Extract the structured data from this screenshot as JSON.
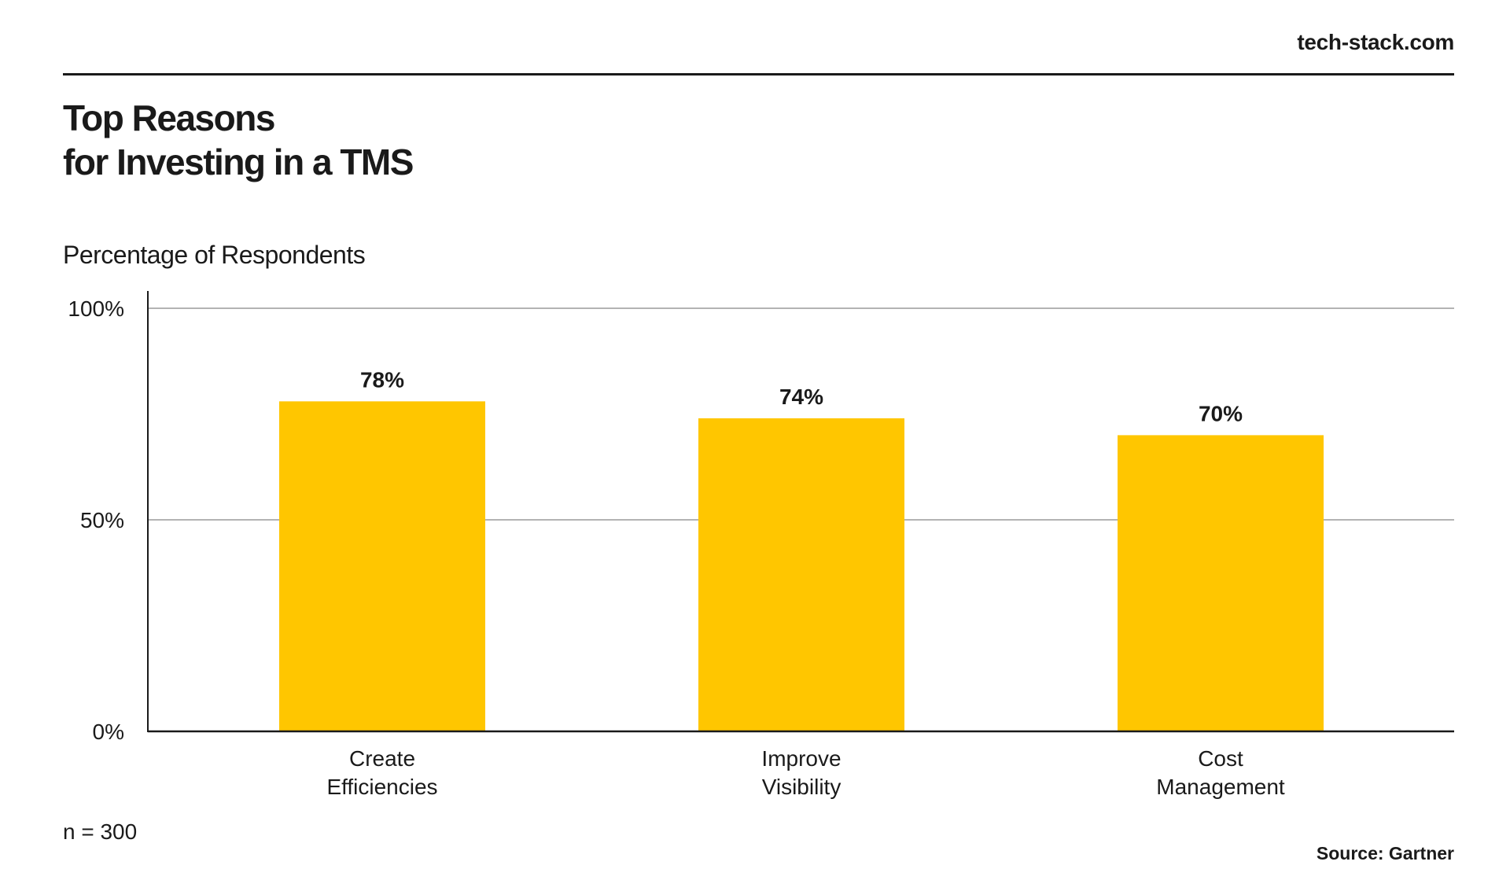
{
  "brand": "tech-stack.com",
  "title_lines": [
    "Top Reasons",
    "for Investing in a TMS"
  ],
  "subtitle": "Percentage of Respondents",
  "note": "n = 300",
  "source": "Source: Gartner",
  "colors": {
    "bar": "#FFC600",
    "grid": "#9a9a9a",
    "axis": "#1a1a1a"
  },
  "chart_data": {
    "type": "bar",
    "categories": [
      [
        "Create",
        "Efficiencies"
      ],
      [
        "Improve",
        "Visibility"
      ],
      [
        "Cost",
        "Management"
      ]
    ],
    "values": [
      78,
      74,
      70
    ],
    "value_labels": [
      "78%",
      "74%",
      "70%"
    ],
    "yticks": [
      0,
      50,
      100
    ],
    "ytick_labels": [
      "0%",
      "50%",
      "100%"
    ],
    "ylim": [
      0,
      100
    ],
    "grid": true
  }
}
